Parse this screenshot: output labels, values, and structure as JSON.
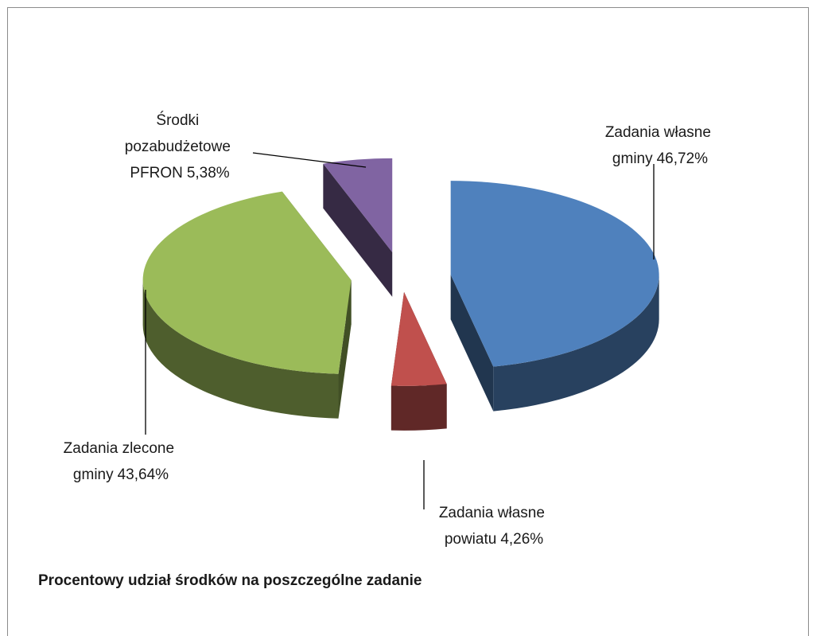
{
  "chart_data": {
    "type": "pie3d",
    "title": "Procentowy udział środków na poszczególne zadanie",
    "categories": [
      "Zadania własne gminy",
      "Zadania własne powiatu",
      "Zadania zlecone gminy",
      "Środki pozabudżetowe PFRON"
    ],
    "values": [
      46.72,
      4.26,
      43.64,
      5.38
    ],
    "value_labels": [
      "46,72%",
      "4,26%",
      "43,64%",
      "5,38%"
    ],
    "colors": [
      "#4f81bd",
      "#c0504d",
      "#9bbb59",
      "#8064a2"
    ],
    "exploded": true
  }
}
